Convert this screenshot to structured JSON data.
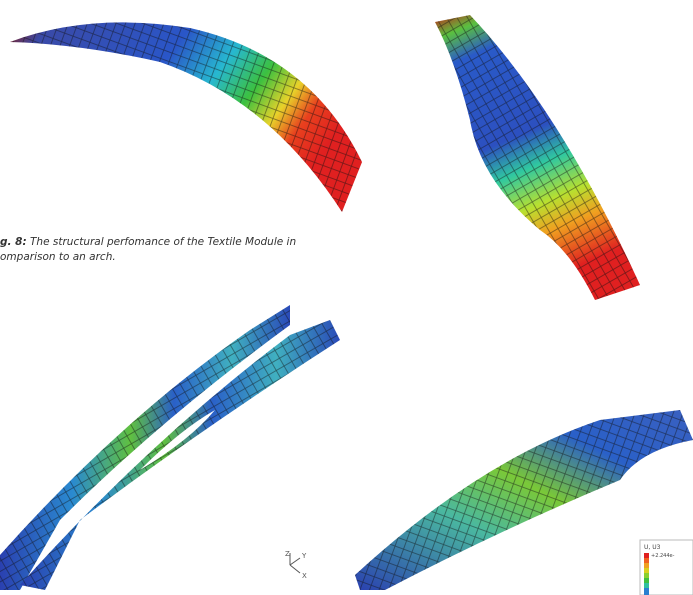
{
  "caption": {
    "label": "g. 8:",
    "line1": "The structural perfomance of the Textile Module in",
    "line2": "omparison to an arch."
  },
  "axes_triad": {
    "z": "Z",
    "y": "Y",
    "x": "X"
  },
  "legend": {
    "title": "U, U3",
    "first_value": "+2.244e-"
  }
}
